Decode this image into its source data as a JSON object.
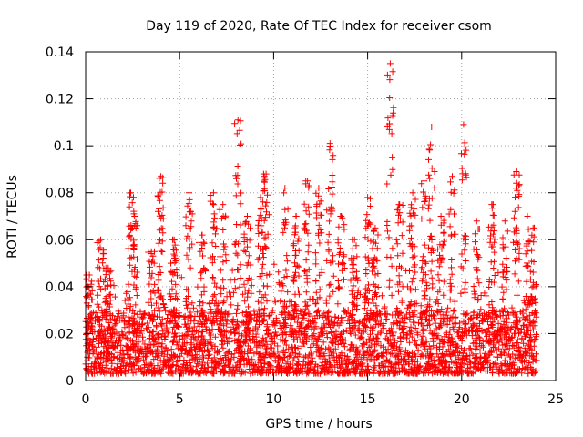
{
  "chart_data": {
    "type": "scatter",
    "title": "Day 119 of 2020, Rate Of TEC Index for receiver csom",
    "xlabel": "GPS time / hours",
    "ylabel": "ROTI / TECUs",
    "xlim": [
      0,
      25
    ],
    "ylim": [
      0,
      0.14
    ],
    "x_ticks": [
      0,
      5,
      10,
      15,
      20,
      25
    ],
    "x_tick_labels": [
      "0",
      "5",
      "10",
      "15",
      "20",
      "25"
    ],
    "y_ticks": [
      0,
      0.02,
      0.04,
      0.06,
      0.08,
      0.1,
      0.12,
      0.14
    ],
    "y_tick_labels": [
      "0",
      "0.02",
      "0.04",
      "0.06",
      "0.08",
      "0.1",
      "0.12",
      "0.14"
    ],
    "grid": true,
    "marker": "plus",
    "series": [
      {
        "name": "ROTI",
        "color": "#ff0000",
        "x_range": [
          0,
          24
        ],
        "base_range": [
          0.003,
          0.03
        ],
        "typical_median": 0.015,
        "spikes": [
          {
            "x": 0.2,
            "y": 0.045
          },
          {
            "x": 0.8,
            "y": 0.06
          },
          {
            "x": 1.2,
            "y": 0.048
          },
          {
            "x": 2.4,
            "y": 0.08
          },
          {
            "x": 2.6,
            "y": 0.07
          },
          {
            "x": 3.5,
            "y": 0.055
          },
          {
            "x": 4.0,
            "y": 0.087
          },
          {
            "x": 4.7,
            "y": 0.06
          },
          {
            "x": 5.5,
            "y": 0.08
          },
          {
            "x": 6.2,
            "y": 0.062
          },
          {
            "x": 6.8,
            "y": 0.08
          },
          {
            "x": 7.3,
            "y": 0.075
          },
          {
            "x": 8.1,
            "y": 0.111
          },
          {
            "x": 8.6,
            "y": 0.07
          },
          {
            "x": 9.3,
            "y": 0.078
          },
          {
            "x": 9.6,
            "y": 0.088
          },
          {
            "x": 10.6,
            "y": 0.082
          },
          {
            "x": 11.2,
            "y": 0.07
          },
          {
            "x": 11.8,
            "y": 0.085
          },
          {
            "x": 12.4,
            "y": 0.082
          },
          {
            "x": 13.0,
            "y": 0.101
          },
          {
            "x": 13.6,
            "y": 0.07
          },
          {
            "x": 14.3,
            "y": 0.06
          },
          {
            "x": 15.0,
            "y": 0.078
          },
          {
            "x": 15.4,
            "y": 0.065
          },
          {
            "x": 16.2,
            "y": 0.135
          },
          {
            "x": 16.7,
            "y": 0.075
          },
          {
            "x": 17.4,
            "y": 0.08
          },
          {
            "x": 18.0,
            "y": 0.085
          },
          {
            "x": 18.4,
            "y": 0.108
          },
          {
            "x": 18.9,
            "y": 0.07
          },
          {
            "x": 19.5,
            "y": 0.087
          },
          {
            "x": 20.1,
            "y": 0.109
          },
          {
            "x": 20.8,
            "y": 0.068
          },
          {
            "x": 21.6,
            "y": 0.075
          },
          {
            "x": 22.3,
            "y": 0.068
          },
          {
            "x": 22.9,
            "y": 0.089
          },
          {
            "x": 23.5,
            "y": 0.07
          },
          {
            "x": 23.8,
            "y": 0.065
          }
        ]
      }
    ]
  }
}
